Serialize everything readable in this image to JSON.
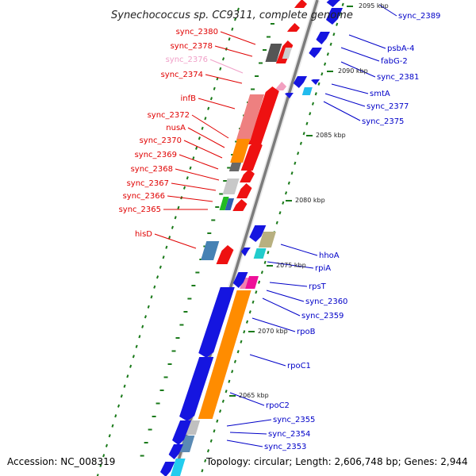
{
  "title": "Synechococcus sp. CC9311, complete genome",
  "accession": "Accession: NC_008319",
  "topology": "Topology: circular; Length: 2,606,748 bp; Genes: 2,944",
  "colors": {
    "forward_label": "#e00000",
    "reverse_label": "#0000c8",
    "pseudo_label": "#f0a0c8",
    "backbone": "#808080",
    "tick": "#1a7a1a",
    "forward_gene": "#ee1111",
    "reverse_gene": "#1515e0"
  },
  "kbp_marks": [
    "2095 kbp",
    "2090 kbp",
    "2085 kbp",
    "2080 kbp",
    "2075 kbp",
    "2070 kbp",
    "2065 kbp"
  ],
  "left_labels": [
    {
      "text": "sync_2380",
      "color": "red"
    },
    {
      "text": "sync_2378",
      "color": "red"
    },
    {
      "text": "sync_2376",
      "color": "pink"
    },
    {
      "text": "sync_2374",
      "color": "red"
    },
    {
      "text": "infB",
      "color": "red"
    },
    {
      "text": "sync_2372",
      "color": "red"
    },
    {
      "text": "nusA",
      "color": "red"
    },
    {
      "text": "sync_2370",
      "color": "red"
    },
    {
      "text": "sync_2369",
      "color": "red"
    },
    {
      "text": "sync_2368",
      "color": "red"
    },
    {
      "text": "sync_2367",
      "color": "red"
    },
    {
      "text": "sync_2366",
      "color": "red"
    },
    {
      "text": "sync_2365",
      "color": "red"
    },
    {
      "text": "hisD",
      "color": "red"
    }
  ],
  "right_labels": [
    {
      "text": "sync_2389"
    },
    {
      "text": "psbA-4"
    },
    {
      "text": "fabG-2"
    },
    {
      "text": "sync_2381"
    },
    {
      "text": "smtA"
    },
    {
      "text": "sync_2377"
    },
    {
      "text": "sync_2375"
    },
    {
      "text": "hhoA"
    },
    {
      "text": "rpiA"
    },
    {
      "text": "rpsT"
    },
    {
      "text": "sync_2360"
    },
    {
      "text": "sync_2359"
    },
    {
      "text": "rpoB"
    },
    {
      "text": "rpoC1"
    },
    {
      "text": "rpoC2"
    },
    {
      "text": "sync_2355"
    },
    {
      "text": "sync_2354"
    },
    {
      "text": "sync_2353"
    }
  ]
}
